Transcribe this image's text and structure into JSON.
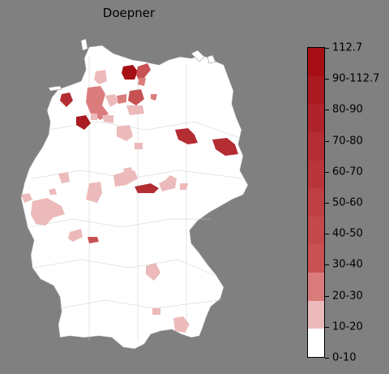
{
  "title": "Doepner",
  "legend": {
    "labels": [
      "112.7",
      "90-112.7",
      "80-90",
      "70-80",
      "60-70",
      "50-60",
      "40-50",
      "30-40",
      "20-30",
      "10-20",
      "0-10"
    ],
    "segment_colors": [
      "#a50f15",
      "#a91b21",
      "#ae242a",
      "#b32d32",
      "#b8363a",
      "#bd3f42",
      "#c2484b",
      "#c75153",
      "#db7c7c",
      "#ecbaba",
      "#ffffff"
    ]
  },
  "colors": {
    "background": "#808080",
    "land": "#ffffff",
    "border": "#bbbbbb"
  }
}
